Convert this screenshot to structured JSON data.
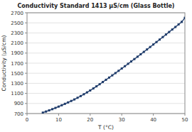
{
  "chart_data": {
    "type": "line",
    "title": "Conductivity Standard 1413 μS/cm (Glass Bottle)",
    "xlabel": "T (°C)",
    "ylabel": "Conductivity (μS/cm)",
    "x": [
      5,
      6,
      7,
      8,
      9,
      10,
      11,
      12,
      13,
      14,
      15,
      16,
      17,
      18,
      19,
      20,
      21,
      22,
      23,
      24,
      25,
      26,
      27,
      28,
      29,
      30,
      31,
      32,
      33,
      34,
      35,
      36,
      37,
      38,
      39,
      40,
      41,
      42,
      43,
      44,
      45,
      46,
      47,
      48,
      49,
      50
    ],
    "values": [
      718,
      740,
      763,
      787,
      812,
      838,
      865,
      893,
      921,
      950,
      980,
      1013,
      1047,
      1083,
      1120,
      1158,
      1198,
      1240,
      1282,
      1326,
      1370,
      1414,
      1458,
      1503,
      1548,
      1594,
      1640,
      1687,
      1734,
      1781,
      1828,
      1876,
      1924,
      1972,
      2021,
      2070,
      2119,
      2168,
      2218,
      2268,
      2318,
      2368,
      2418,
      2469,
      2520,
      2600
    ],
    "color": "#1f3c6b",
    "marker": "square",
    "line_style": "solid",
    "xlim": [
      0,
      50
    ],
    "ylim": [
      700,
      2700
    ],
    "xticks": [
      0,
      10,
      20,
      30,
      40,
      50
    ],
    "yticks": [
      700,
      900,
      1100,
      1300,
      1500,
      1700,
      1900,
      2100,
      2300,
      2500,
      2700
    ],
    "grid": true
  }
}
